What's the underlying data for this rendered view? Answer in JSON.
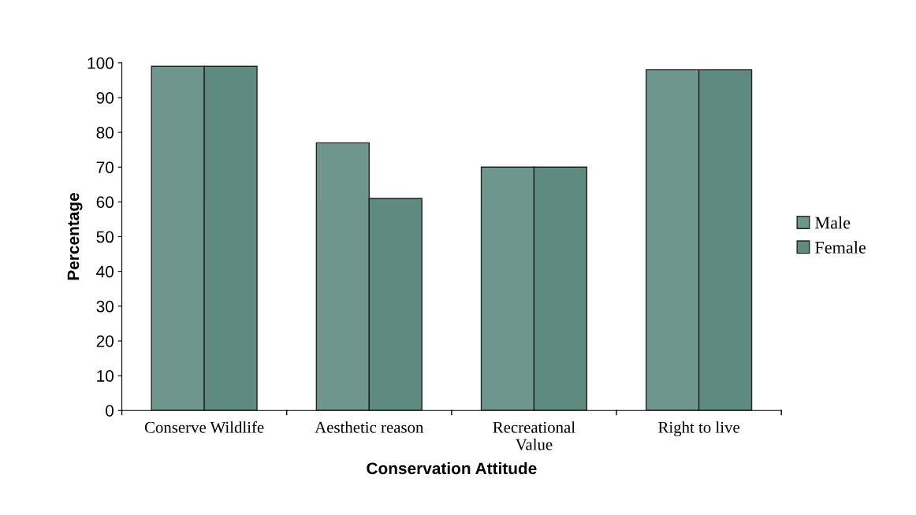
{
  "chart_data": {
    "type": "bar",
    "xlabel": "Conservation Attitude",
    "ylabel": "Percentage",
    "categories": [
      "Conserve Wildlife",
      "Aesthetic reason",
      "Recreational\nValue",
      "Right to live"
    ],
    "series": [
      {
        "name": "Male",
        "color": "#6f968c",
        "values": [
          99,
          77,
          70,
          98
        ]
      },
      {
        "name": "Female",
        "color": "#5f8a80",
        "values": [
          99,
          61,
          70,
          98
        ]
      }
    ],
    "ylim": [
      0,
      100
    ],
    "yticks": [
      0,
      10,
      20,
      30,
      40,
      50,
      60,
      70,
      80,
      90,
      100
    ],
    "grid": false,
    "legend": "right"
  }
}
